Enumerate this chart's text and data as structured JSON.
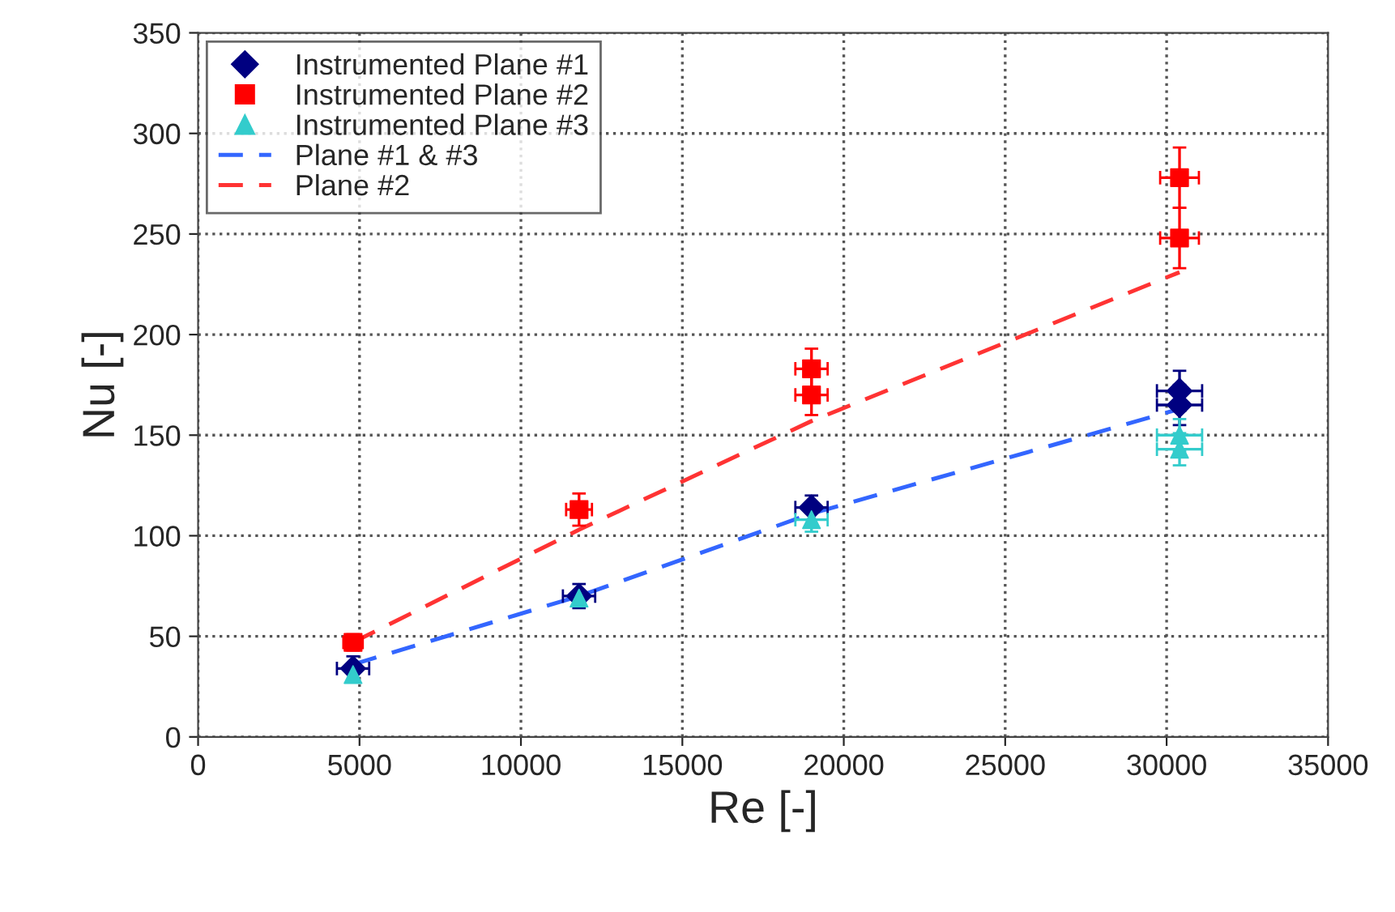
{
  "chart_data": {
    "type": "scatter",
    "xlabel": "Re [-]",
    "ylabel": "Nu [-]",
    "xlim": [
      0,
      35000
    ],
    "xticks": [
      0,
      5000,
      10000,
      15000,
      20000,
      25000,
      30000,
      35000
    ],
    "ylim": [
      0,
      350
    ],
    "yticks": [
      0,
      50,
      100,
      150,
      200,
      250,
      300,
      350
    ],
    "grid": true,
    "legend": "top left",
    "series": [
      {
        "name": "Instrumented Plane #1",
        "color": "#000080",
        "marker": "diamond",
        "x": [
          4800,
          11800,
          19000,
          30400,
          30400
        ],
        "values": [
          34,
          70,
          114,
          172,
          165
        ],
        "errors": [
          6,
          6,
          6,
          10,
          10
        ],
        "xerrors": [
          500,
          500,
          500,
          700,
          700
        ]
      },
      {
        "name": "Instrumented Plane #2",
        "color": "#ff0000",
        "marker": "square",
        "x": [
          4800,
          11800,
          19000,
          19000,
          30400,
          30400
        ],
        "values": [
          47,
          113,
          183,
          170,
          278,
          248
        ],
        "errors": [
          4,
          8,
          10,
          10,
          15,
          15
        ],
        "xerrors": [
          300,
          400,
          500,
          500,
          600,
          600
        ]
      },
      {
        "name": "Instrumented Plane #3",
        "color": "#33cccc",
        "marker": "triangle",
        "x": [
          4800,
          11800,
          19000,
          30400,
          30400
        ],
        "values": [
          31,
          69,
          108,
          150,
          143
        ],
        "errors": [
          null,
          null,
          6,
          8,
          8
        ],
        "xerrors": [
          null,
          null,
          500,
          700,
          700
        ]
      },
      {
        "name": "Plane #1 & #3",
        "type": "line",
        "line_style": "dashed",
        "marker": "none",
        "color": "#3366ff",
        "x": [
          4800,
          11800,
          19000,
          30400
        ],
        "values": [
          36,
          70,
          111,
          163
        ]
      },
      {
        "name": "Plane #2",
        "type": "line",
        "line_style": "dashed",
        "marker": "none",
        "color": "#ff3333",
        "x": [
          4800,
          11800,
          19000,
          30400
        ],
        "values": [
          47,
          103,
          157,
          231
        ]
      }
    ]
  }
}
